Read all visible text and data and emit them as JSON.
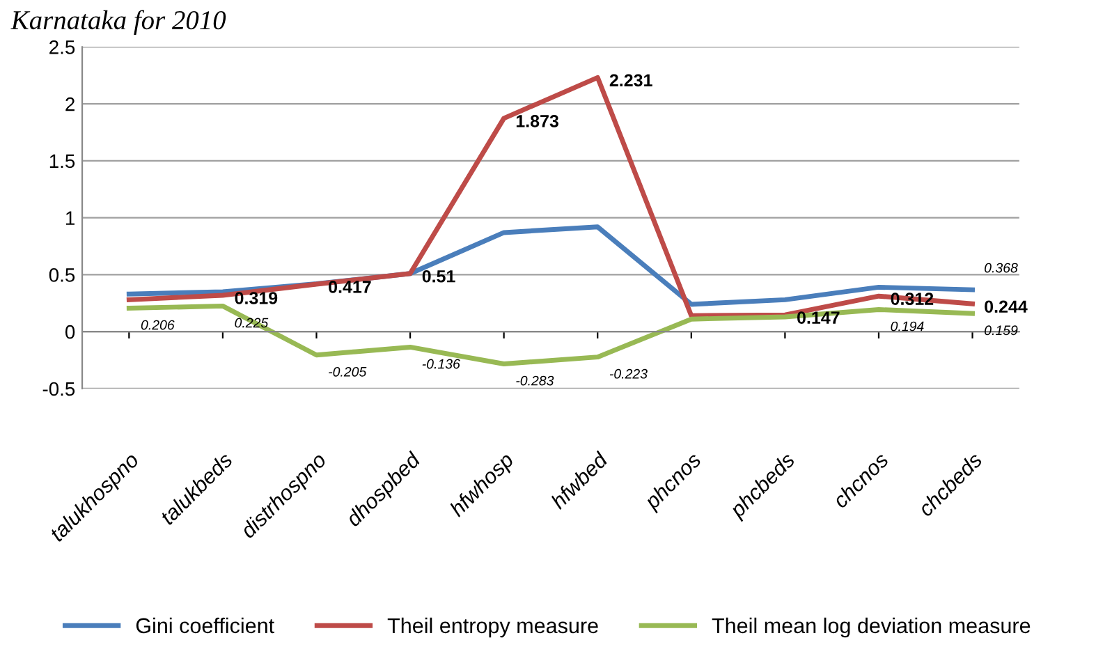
{
  "chart_data": {
    "type": "line",
    "title": "Karnataka for 2010",
    "categories": [
      "talukhospno",
      "talukbeds",
      "distrhospno",
      "dhospbed",
      "hfwhosp",
      "hfwbed",
      "phcnos",
      "phcbeds",
      "chcnos",
      "chcbeds"
    ],
    "series": [
      {
        "name": "Gini coefficient",
        "color": "#4a7ebb",
        "values": [
          0.33,
          0.35,
          0.42,
          0.51,
          0.87,
          0.92,
          0.24,
          0.28,
          0.39,
          0.368
        ],
        "value_labels": [
          null,
          null,
          null,
          null,
          null,
          null,
          null,
          null,
          null,
          "0.368"
        ]
      },
      {
        "name": "Theil entropy measure",
        "color": "#be4b48",
        "values": [
          0.28,
          0.319,
          0.417,
          0.51,
          1.873,
          2.231,
          0.14,
          0.147,
          0.312,
          0.244
        ],
        "value_labels": [
          null,
          "0.319",
          "0.417",
          "0.51",
          "1.873",
          "2.231",
          null,
          "0.147",
          "0.312",
          "0.244"
        ]
      },
      {
        "name": "Theil mean log deviation measure",
        "color": "#98b954",
        "values": [
          0.206,
          0.225,
          -0.205,
          -0.136,
          -0.283,
          -0.223,
          0.11,
          0.13,
          0.194,
          0.159
        ],
        "value_labels": [
          "0.206",
          "0.225",
          "-0.205",
          "-0.136",
          "-0.283",
          "-0.223",
          null,
          null,
          "0.194",
          "0.159"
        ]
      }
    ],
    "ylim": [
      -0.5,
      2.5
    ],
    "yticks": [
      -0.5,
      0,
      0.5,
      1,
      1.5,
      2,
      2.5
    ],
    "grid": "y",
    "legend": "bottom",
    "marker": "none",
    "line_style": "solid"
  }
}
